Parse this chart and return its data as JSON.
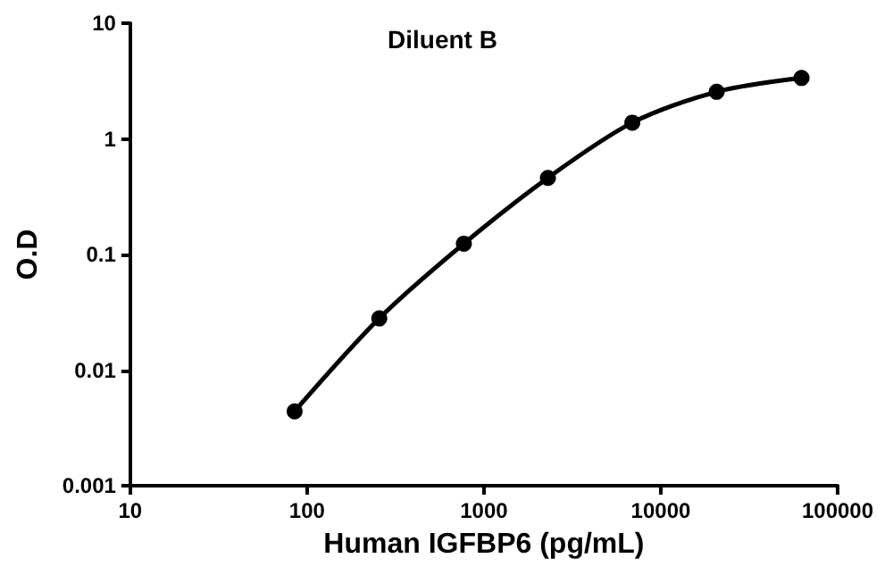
{
  "chart_data": {
    "type": "line",
    "title": "Diluent B",
    "xlabel": "Human IGFBP6 (pg/mL)",
    "ylabel": "O.D",
    "log": "xy",
    "grid": false,
    "marker": "circle",
    "line_style": "solid",
    "xlim": [
      10,
      100000
    ],
    "xticks": [
      10,
      100,
      1000,
      10000,
      100000
    ],
    "ylim": [
      0.001,
      10
    ],
    "yticks": [
      0.001,
      0.01,
      0.1,
      1,
      10
    ],
    "x": [
      85,
      256,
      770,
      2300,
      6900,
      20700,
      62500
    ],
    "series": [
      {
        "color": "#000000",
        "values": [
          0.0044,
          0.028,
          0.124,
          0.46,
          1.38,
          2.55,
          3.36
        ]
      }
    ]
  }
}
